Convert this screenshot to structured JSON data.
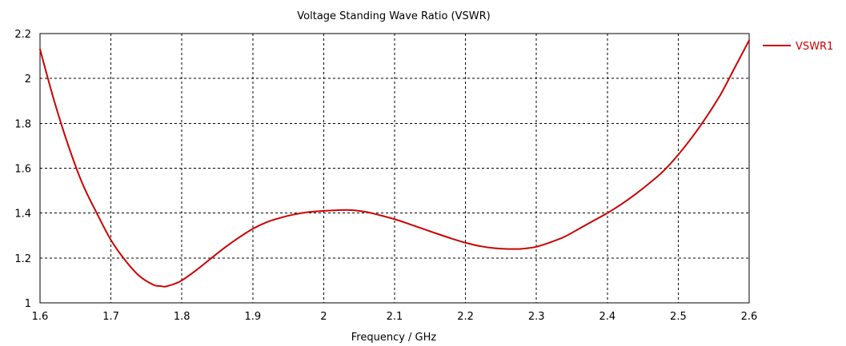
{
  "chart_data": {
    "type": "line",
    "title": "Voltage Standing Wave Ratio (VSWR)",
    "xlabel": "Frequency / GHz",
    "ylabel": "",
    "xlim": [
      1.6,
      2.6
    ],
    "ylim": [
      1,
      2.2
    ],
    "x_ticks": [
      "1.6",
      "1.7",
      "1.8",
      "1.9",
      "2",
      "2.1",
      "2.2",
      "2.3",
      "2.4",
      "2.5",
      "2.6"
    ],
    "y_ticks": [
      "1",
      "1.2",
      "1.4",
      "1.6",
      "1.8",
      "2",
      "2.2"
    ],
    "grid": true,
    "legend_position": "right",
    "series": [
      {
        "name": "VSWR1",
        "color": "#cc0000",
        "x": [
          1.6,
          1.62,
          1.64,
          1.66,
          1.68,
          1.7,
          1.72,
          1.74,
          1.76,
          1.77,
          1.775,
          1.78,
          1.79,
          1.8,
          1.82,
          1.84,
          1.86,
          1.88,
          1.9,
          1.92,
          1.94,
          1.96,
          1.98,
          2.0,
          2.02,
          2.03,
          2.04,
          2.06,
          2.08,
          2.1,
          2.12,
          2.14,
          2.16,
          2.18,
          2.2,
          2.22,
          2.24,
          2.26,
          2.27,
          2.28,
          2.3,
          2.32,
          2.34,
          2.36,
          2.38,
          2.4,
          2.42,
          2.44,
          2.46,
          2.48,
          2.5,
          2.52,
          2.54,
          2.56,
          2.58,
          2.6
        ],
        "y": [
          2.13,
          1.9,
          1.7,
          1.53,
          1.4,
          1.28,
          1.19,
          1.12,
          1.08,
          1.075,
          1.072,
          1.075,
          1.085,
          1.1,
          1.145,
          1.195,
          1.245,
          1.29,
          1.33,
          1.36,
          1.38,
          1.395,
          1.405,
          1.41,
          1.413,
          1.414,
          1.413,
          1.405,
          1.39,
          1.373,
          1.352,
          1.33,
          1.308,
          1.287,
          1.268,
          1.253,
          1.244,
          1.24,
          1.24,
          1.241,
          1.25,
          1.27,
          1.295,
          1.33,
          1.365,
          1.4,
          1.44,
          1.485,
          1.535,
          1.59,
          1.66,
          1.74,
          1.83,
          1.93,
          2.05,
          2.17
        ]
      }
    ]
  }
}
